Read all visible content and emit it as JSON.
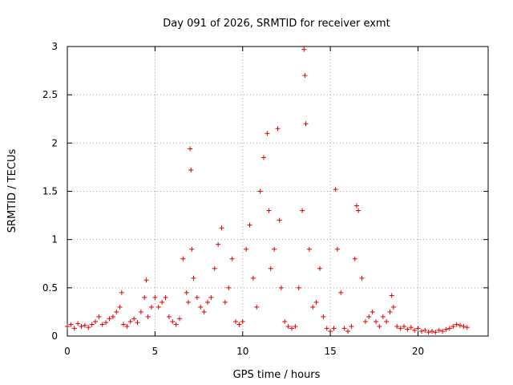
{
  "chart_data": {
    "type": "scatter",
    "title": "Day 091 of 2026, SRMTID for receiver exmt",
    "xlabel": "GPS time / hours",
    "ylabel": "SRMTID / TECUs",
    "xlim": [
      0,
      24
    ],
    "ylim": [
      0,
      3
    ],
    "xticks": [
      0,
      5,
      10,
      15,
      20
    ],
    "yticks": [
      0,
      0.5,
      1,
      1.5,
      2,
      2.5,
      3
    ],
    "xtick_labels": [
      "0",
      "5",
      "10",
      "15",
      "20"
    ],
    "ytick_labels": [
      "0",
      "0.5",
      "1",
      "1.5",
      "2",
      "2.5",
      "3"
    ],
    "grid": true,
    "marker": "+",
    "series": [
      {
        "name": "SRMTID",
        "color": "#e00000",
        "x": [
          0.0,
          0.2,
          0.4,
          0.6,
          0.8,
          1.0,
          1.2,
          1.4,
          1.6,
          1.8,
          2.0,
          2.2,
          2.4,
          2.6,
          2.8,
          3.0,
          3.1,
          3.2,
          3.4,
          3.6,
          3.8,
          4.0,
          4.2,
          4.4,
          4.5,
          4.6,
          4.8,
          5.0,
          5.2,
          5.4,
          5.6,
          5.8,
          6.0,
          6.2,
          6.4,
          6.6,
          6.8,
          6.9,
          7.0,
          7.05,
          7.1,
          7.2,
          7.4,
          7.6,
          7.8,
          8.0,
          8.2,
          8.4,
          8.6,
          8.8,
          9.0,
          9.2,
          9.4,
          9.6,
          9.8,
          10.0,
          10.2,
          10.4,
          10.6,
          10.8,
          11.0,
          11.2,
          11.4,
          11.5,
          11.6,
          11.8,
          12.0,
          12.1,
          12.2,
          12.4,
          12.6,
          12.8,
          13.0,
          13.2,
          13.4,
          13.5,
          13.55,
          13.6,
          13.8,
          14.0,
          14.2,
          14.4,
          14.6,
          14.8,
          15.0,
          15.2,
          15.3,
          15.4,
          15.6,
          15.8,
          16.0,
          16.2,
          16.4,
          16.5,
          16.6,
          16.8,
          17.0,
          17.2,
          17.4,
          17.6,
          17.8,
          18.0,
          18.2,
          18.4,
          18.5,
          18.6,
          18.8,
          19.0,
          19.2,
          19.4,
          19.6,
          19.8,
          20.0,
          20.2,
          20.4,
          20.6,
          20.8,
          21.0,
          21.2,
          21.4,
          21.6,
          21.8,
          22.0,
          22.2,
          22.4,
          22.6,
          22.8
        ],
        "y": [
          0.1,
          0.12,
          0.08,
          0.13,
          0.1,
          0.11,
          0.09,
          0.12,
          0.15,
          0.2,
          0.12,
          0.14,
          0.18,
          0.2,
          0.25,
          0.3,
          0.45,
          0.12,
          0.1,
          0.15,
          0.18,
          0.14,
          0.25,
          0.4,
          0.58,
          0.2,
          0.3,
          0.4,
          0.3,
          0.35,
          0.4,
          0.2,
          0.15,
          0.12,
          0.18,
          0.8,
          0.45,
          0.35,
          1.94,
          1.72,
          0.9,
          0.6,
          0.4,
          0.3,
          0.25,
          0.35,
          0.4,
          0.7,
          0.95,
          1.12,
          0.35,
          0.5,
          0.8,
          0.15,
          0.12,
          0.15,
          0.9,
          1.15,
          0.6,
          0.3,
          1.5,
          1.85,
          2.1,
          1.3,
          0.7,
          0.9,
          2.15,
          1.2,
          0.5,
          0.15,
          0.1,
          0.08,
          0.1,
          0.5,
          1.3,
          2.97,
          2.7,
          2.2,
          0.9,
          0.3,
          0.35,
          0.7,
          0.2,
          0.08,
          0.05,
          0.08,
          1.52,
          0.9,
          0.45,
          0.08,
          0.05,
          0.1,
          0.8,
          1.35,
          1.3,
          0.6,
          0.15,
          0.2,
          0.25,
          0.15,
          0.1,
          0.2,
          0.15,
          0.25,
          0.42,
          0.3,
          0.1,
          0.08,
          0.1,
          0.07,
          0.09,
          0.06,
          0.08,
          0.05,
          0.06,
          0.04,
          0.05,
          0.04,
          0.06,
          0.05,
          0.07,
          0.08,
          0.1,
          0.12,
          0.11,
          0.1,
          0.09
        ]
      }
    ]
  }
}
